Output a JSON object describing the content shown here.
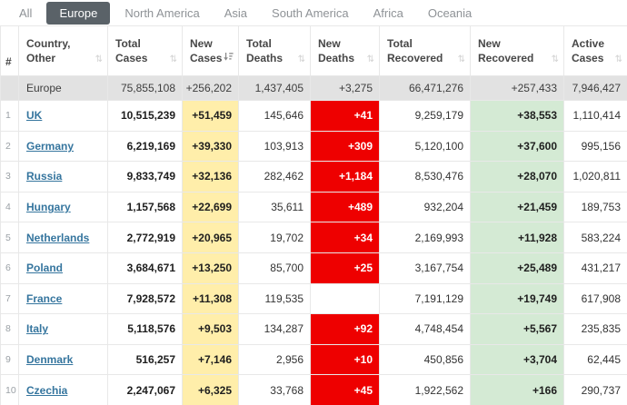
{
  "tabs": [
    {
      "label": "All",
      "active": false
    },
    {
      "label": "Europe",
      "active": true
    },
    {
      "label": "North America",
      "active": false
    },
    {
      "label": "Asia",
      "active": false
    },
    {
      "label": "South America",
      "active": false
    },
    {
      "label": "Africa",
      "active": false
    },
    {
      "label": "Oceania",
      "active": false
    }
  ],
  "table": {
    "sort_icon_glyph": "⇅",
    "columns": [
      {
        "label_line1": "",
        "label_line2": "#",
        "sort": "none"
      },
      {
        "label_line1": "Country,",
        "label_line2": "Other",
        "sort": "inactive"
      },
      {
        "label_line1": "Total",
        "label_line2": "Cases",
        "sort": "inactive"
      },
      {
        "label_line1": "New",
        "label_line2": "Cases",
        "sort": "desc"
      },
      {
        "label_line1": "Total",
        "label_line2": "Deaths",
        "sort": "inactive"
      },
      {
        "label_line1": "New",
        "label_line2": "Deaths",
        "sort": "inactive"
      },
      {
        "label_line1": "Total",
        "label_line2": "Recovered",
        "sort": "inactive"
      },
      {
        "label_line1": "New",
        "label_line2": "Recovered",
        "sort": "inactive"
      },
      {
        "label_line1": "Active",
        "label_line2": "Cases",
        "sort": "inactive"
      }
    ],
    "summary": {
      "region": "Europe",
      "total_cases": "75,855,108",
      "new_cases": "+256,202",
      "total_deaths": "1,437,405",
      "new_deaths": "+3,275",
      "total_recovered": "66,471,276",
      "new_recovered": "+257,433",
      "active_cases": "7,946,427"
    },
    "rows": [
      {
        "rank": "1",
        "country": "UK",
        "total_cases": "10,515,239",
        "new_cases": "+51,459",
        "total_deaths": "145,646",
        "new_deaths": "+41",
        "total_recovered": "9,259,179",
        "new_recovered": "+38,553",
        "active_cases": "1,110,414"
      },
      {
        "rank": "2",
        "country": "Germany",
        "total_cases": "6,219,169",
        "new_cases": "+39,330",
        "total_deaths": "103,913",
        "new_deaths": "+309",
        "total_recovered": "5,120,100",
        "new_recovered": "+37,600",
        "active_cases": "995,156"
      },
      {
        "rank": "3",
        "country": "Russia",
        "total_cases": "9,833,749",
        "new_cases": "+32,136",
        "total_deaths": "282,462",
        "new_deaths": "+1,184",
        "total_recovered": "8,530,476",
        "new_recovered": "+28,070",
        "active_cases": "1,020,811"
      },
      {
        "rank": "4",
        "country": "Hungary",
        "total_cases": "1,157,568",
        "new_cases": "+22,699",
        "total_deaths": "35,611",
        "new_deaths": "+489",
        "total_recovered": "932,204",
        "new_recovered": "+21,459",
        "active_cases": "189,753"
      },
      {
        "rank": "5",
        "country": "Netherlands",
        "total_cases": "2,772,919",
        "new_cases": "+20,965",
        "total_deaths": "19,702",
        "new_deaths": "+34",
        "total_recovered": "2,169,993",
        "new_recovered": "+11,928",
        "active_cases": "583,224"
      },
      {
        "rank": "6",
        "country": "Poland",
        "total_cases": "3,684,671",
        "new_cases": "+13,250",
        "total_deaths": "85,700",
        "new_deaths": "+25",
        "total_recovered": "3,167,754",
        "new_recovered": "+25,489",
        "active_cases": "431,217"
      },
      {
        "rank": "7",
        "country": "France",
        "total_cases": "7,928,572",
        "new_cases": "+11,308",
        "total_deaths": "119,535",
        "new_deaths": "",
        "total_recovered": "7,191,129",
        "new_recovered": "+19,749",
        "active_cases": "617,908"
      },
      {
        "rank": "8",
        "country": "Italy",
        "total_cases": "5,118,576",
        "new_cases": "+9,503",
        "total_deaths": "134,287",
        "new_deaths": "+92",
        "total_recovered": "4,748,454",
        "new_recovered": "+5,567",
        "active_cases": "235,835"
      },
      {
        "rank": "9",
        "country": "Denmark",
        "total_cases": "516,257",
        "new_cases": "+7,146",
        "total_deaths": "2,956",
        "new_deaths": "+10",
        "total_recovered": "450,856",
        "new_recovered": "+3,704",
        "active_cases": "62,445"
      },
      {
        "rank": "10",
        "country": "Czechia",
        "total_cases": "2,247,067",
        "new_cases": "+6,325",
        "total_deaths": "33,768",
        "new_deaths": "+45",
        "total_recovered": "1,922,562",
        "new_recovered": "+166",
        "active_cases": "290,737"
      }
    ]
  },
  "colors": {
    "new_cases_bg": "#FFEEAA",
    "new_deaths_bg": "#EE0000",
    "new_recovered_bg": "#D4EAD4",
    "summary_row_bg": "#E2E2E2",
    "active_tab_bg": "#5A6268",
    "country_link": "#35759E"
  }
}
